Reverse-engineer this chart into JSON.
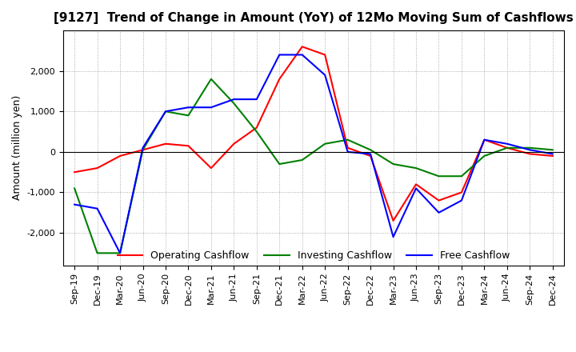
{
  "title": "[9127]  Trend of Change in Amount (YoY) of 12Mo Moving Sum of Cashflows",
  "ylabel": "Amount (million yen)",
  "x_labels": [
    "Sep-19",
    "Dec-19",
    "Mar-20",
    "Jun-20",
    "Sep-20",
    "Dec-20",
    "Mar-21",
    "Jun-21",
    "Sep-21",
    "Dec-21",
    "Mar-22",
    "Jun-22",
    "Sep-22",
    "Dec-22",
    "Mar-23",
    "Jun-23",
    "Sep-23",
    "Dec-23",
    "Mar-24",
    "Jun-24",
    "Sep-24",
    "Dec-24"
  ],
  "operating": [
    -500,
    -400,
    -100,
    50,
    200,
    150,
    -400,
    200,
    600,
    1800,
    2600,
    2400,
    100,
    -100,
    -1700,
    -800,
    -1200,
    -1000,
    300,
    100,
    -50,
    -100
  ],
  "investing": [
    -900,
    -2500,
    -2500,
    50,
    1000,
    900,
    1800,
    1200,
    500,
    -300,
    -200,
    200,
    300,
    50,
    -300,
    -400,
    -600,
    -600,
    -100,
    100,
    100,
    50
  ],
  "free": [
    -1300,
    -1400,
    -2500,
    100,
    1000,
    1100,
    1100,
    1300,
    1300,
    2400,
    2400,
    1900,
    0,
    -50,
    -2100,
    -900,
    -1500,
    -1200,
    300,
    200,
    50,
    -50
  ],
  "operating_color": "#ff0000",
  "investing_color": "#008000",
  "free_color": "#0000ff",
  "ylim": [
    -2800,
    3000
  ],
  "yticks": [
    -2000,
    -1000,
    0,
    1000,
    2000
  ],
  "grid": true,
  "legend_labels": [
    "Operating Cashflow",
    "Investing Cashflow",
    "Free Cashflow"
  ]
}
